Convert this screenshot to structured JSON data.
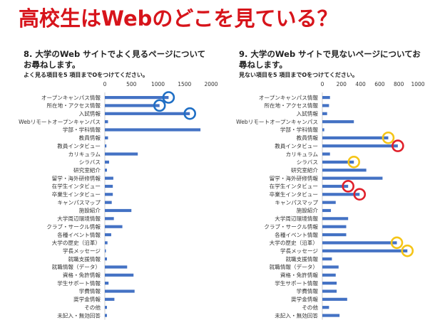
{
  "title": "高校生はWebのどこを見ている？",
  "q8": {
    "title": "8. 大学のWeb サイトでよく見るページについてお尋ねします。",
    "subtitle": "よく見る項目を5 項目までOをつけてください。"
  },
  "q9": {
    "title": "9. 大学のWeb サイトで見ないページについてお尋ねします。",
    "subtitle": "見ない項目を5 項目までOをつけてください。"
  },
  "colors": {
    "title": "#d7141b",
    "bar": "#4472c4",
    "circle_blue": "#1f6fc5",
    "circle_red": "#e0202a",
    "circle_yellow": "#f5c518"
  },
  "chart_data": [
    {
      "type": "bar",
      "orientation": "horizontal",
      "categories": [
        "オープンキャンパス情報",
        "所在地・アクセス情報",
        "入試情報",
        "Webリモートオープンキャンパス",
        "学部・学科情報",
        "教員情報",
        "教員インタビュー",
        "カリキュラム",
        "シラバス",
        "研究室紹介",
        "留学・海外研修情報",
        "在学生インタビュー",
        "卒業生インタビュー",
        "キャンパスマップ",
        "施設紹介",
        "大学周辺環境情報",
        "クラブ・サークル情報",
        "各種イベント情報",
        "大学の歴史（沿革）",
        "学長メッセージ",
        "就職支援情報",
        "就職情報（データ）",
        "資格・免許情報",
        "学生サポート情報",
        "学費情報",
        "奨学金情報",
        "その他",
        "未記入・無効回答"
      ],
      "values": [
        1200,
        1030,
        1600,
        60,
        1800,
        60,
        30,
        620,
        80,
        40,
        160,
        150,
        150,
        130,
        500,
        170,
        330,
        120,
        50,
        20,
        40,
        420,
        540,
        70,
        560,
        180,
        40,
        40
      ],
      "xlim": [
        0,
        2000
      ],
      "xticks": [
        0,
        500,
        1000,
        1500,
        2000
      ],
      "highlighted": [
        {
          "category": "オープンキャンパス情報",
          "color": "blue"
        },
        {
          "category": "所在地・アクセス情報",
          "color": "blue"
        },
        {
          "category": "入試情報",
          "color": "blue"
        }
      ]
    },
    {
      "type": "bar",
      "orientation": "horizontal",
      "categories": [
        "オープンキャンパス情報",
        "所在地・アクセス情報",
        "入試情報",
        "Webリモートオープンキャンパス",
        "学部・学科情報",
        "教員情報",
        "教員インタビュー",
        "カリキュラム",
        "シラバス",
        "研究室紹介",
        "留学・海外研修情報",
        "在学生インタビュー",
        "卒業生インタビュー",
        "キャンパスマップ",
        "施設紹介",
        "大学周辺環境情報",
        "クラブ・サークル情報",
        "各種イベント情報",
        "大学の歴史（沿革）",
        "学長メッセージ",
        "就職支援情報",
        "就職情報（データ）",
        "資格・免許情報",
        "学生サポート情報",
        "学費情報",
        "奨学金情報",
        "その他",
        "未記入・無効回答"
      ],
      "values": [
        80,
        70,
        50,
        330,
        20,
        690,
        790,
        80,
        330,
        460,
        630,
        270,
        390,
        140,
        90,
        270,
        250,
        250,
        780,
        890,
        100,
        170,
        140,
        150,
        150,
        260,
        70,
        180
      ],
      "xlim": [
        0,
        1000
      ],
      "xticks": [
        0,
        200,
        400,
        600,
        800,
        1000
      ],
      "highlighted": [
        {
          "category": "教員情報",
          "color": "yellow"
        },
        {
          "category": "教員インタビュー",
          "color": "red"
        },
        {
          "category": "シラバス",
          "color": "yellow"
        },
        {
          "category": "在学生インタビュー",
          "color": "red"
        },
        {
          "category": "卒業生インタビュー",
          "color": "red"
        },
        {
          "category": "大学の歴史（沿革）",
          "color": "yellow"
        },
        {
          "category": "学長メッセージ",
          "color": "yellow"
        }
      ]
    }
  ]
}
